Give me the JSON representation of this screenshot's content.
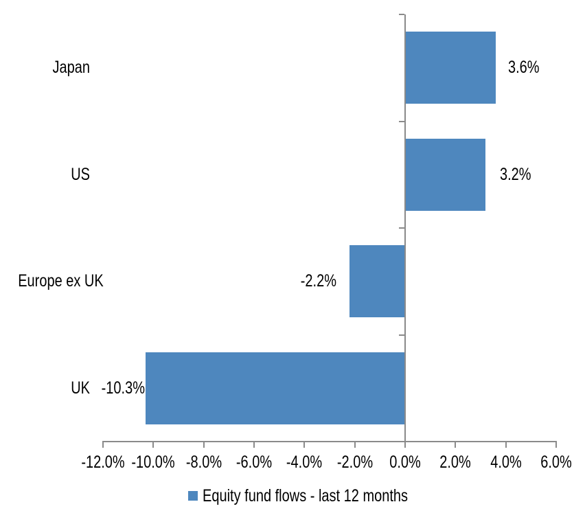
{
  "chart_data": {
    "type": "bar",
    "orientation": "horizontal",
    "title": "",
    "categories": [
      "Japan",
      "US",
      "Europe ex UK",
      "UK"
    ],
    "values": [
      3.6,
      3.2,
      -2.2,
      -10.3
    ],
    "data_labels": [
      "3.6%",
      "3.2%",
      "-2.2%",
      "-10.3%"
    ],
    "series": [
      {
        "name": "Equity fund flows - last 12 months",
        "values": [
          3.6,
          3.2,
          -2.2,
          -10.3
        ]
      }
    ],
    "xlabel": "",
    "ylabel": "",
    "xlim": [
      -12,
      6
    ],
    "xticks": [
      -12,
      -10,
      -8,
      -6,
      -4,
      -2,
      0,
      2,
      4,
      6
    ],
    "xtick_labels": [
      "-12.0%",
      "-10.0%",
      "-8.0%",
      "-6.0%",
      "-4.0%",
      "-2.0%",
      "0.0%",
      "2.0%",
      "4.0%",
      "6.0%"
    ],
    "grid": false,
    "legend_position": "bottom"
  },
  "legend": {
    "marker": "square",
    "label": "Equity fund flows - last 12 months"
  },
  "colors": {
    "bar": "#4E87BE",
    "axis": "#8A8A8A",
    "text": "#000000",
    "background": "#FFFFFF"
  }
}
